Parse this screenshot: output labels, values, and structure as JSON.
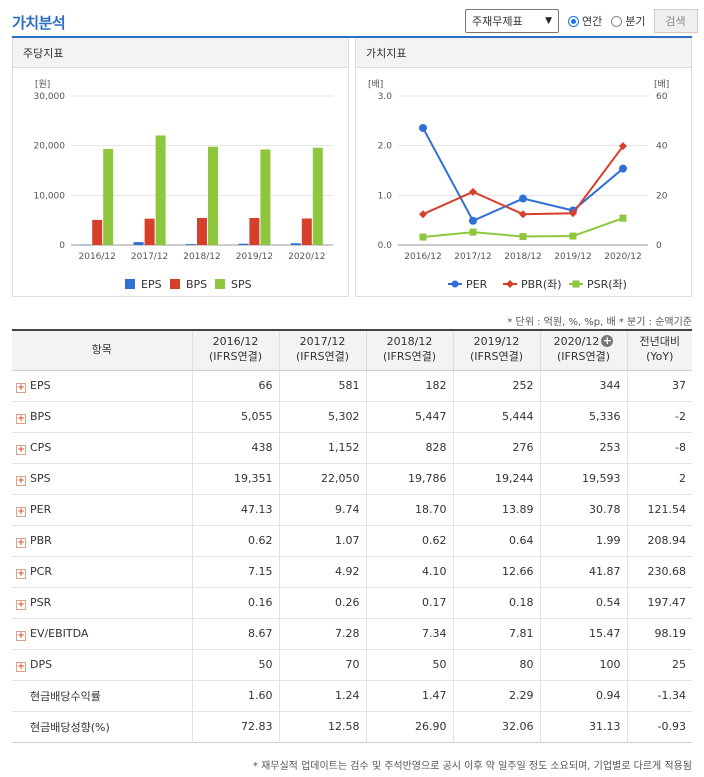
{
  "header": {
    "title": "가치분석",
    "select_value": "주재무제표",
    "radio_annual": "연간",
    "radio_quarter": "분기",
    "search_label": "검색"
  },
  "left_panel": {
    "title": "주당지표"
  },
  "right_panel": {
    "title": "가치지표"
  },
  "chart_data": [
    {
      "type": "bar",
      "title": "주당지표",
      "ylabel": "[원]",
      "categories": [
        "2016/12",
        "2017/12",
        "2018/12",
        "2019/12",
        "2020/12"
      ],
      "ylim": [
        0,
        30000
      ],
      "yticks": [
        "0",
        "10,000",
        "20,000",
        "30,000"
      ],
      "ytick_values": [
        0,
        10000,
        20000,
        30000
      ],
      "series": [
        {
          "name": "EPS",
          "color": "#2f6fd6",
          "values": [
            66,
            581,
            182,
            252,
            344
          ]
        },
        {
          "name": "BPS",
          "color": "#d6402a",
          "values": [
            5055,
            5302,
            5447,
            5444,
            5336
          ]
        },
        {
          "name": "SPS",
          "color": "#8ec73e",
          "values": [
            19351,
            22050,
            19786,
            19244,
            19593
          ]
        }
      ]
    },
    {
      "type": "line",
      "title": "가치지표",
      "ylabel_left": "[배]",
      "ylabel_right": "[배]",
      "categories": [
        "2016/12",
        "2017/12",
        "2018/12",
        "2019/12",
        "2020/12"
      ],
      "ylim_left": [
        0,
        3
      ],
      "ylim_right": [
        0,
        60
      ],
      "yticks_left": [
        "0.0",
        "1.0",
        "2.0",
        "3.0"
      ],
      "yticks_right": [
        "0",
        "20",
        "40",
        "60"
      ],
      "series": [
        {
          "name": "PER",
          "axis": "right",
          "color": "#2f6fd6",
          "marker": "circle",
          "values": [
            47.13,
            9.74,
            18.7,
            13.89,
            30.78
          ]
        },
        {
          "name": "PBR(좌)",
          "axis": "left",
          "color": "#d6402a",
          "marker": "diamond",
          "values": [
            0.62,
            1.07,
            0.62,
            0.64,
            1.99
          ]
        },
        {
          "name": "PSR(좌)",
          "axis": "left",
          "color": "#8ec73e",
          "marker": "square",
          "values": [
            0.16,
            0.26,
            0.17,
            0.18,
            0.54
          ]
        }
      ]
    }
  ],
  "unit_note": "* 단위 : 억원, %, %p, 배    * 분기 : 순액기준",
  "table": {
    "header_item": "항목",
    "columns": [
      {
        "period": "2016/12",
        "basis": "(IFRS연결)"
      },
      {
        "period": "2017/12",
        "basis": "(IFRS연결)"
      },
      {
        "period": "2018/12",
        "basis": "(IFRS연결)"
      },
      {
        "period": "2019/12",
        "basis": "(IFRS연결)"
      },
      {
        "period": "2020/12",
        "basis": "(IFRS연결)"
      }
    ],
    "yoy_line1": "전년대비",
    "yoy_line2": "(YoY)",
    "rows": [
      {
        "label": "EPS",
        "expandable": true,
        "values": [
          "66",
          "581",
          "182",
          "252",
          "344"
        ],
        "yoy": "37",
        "neg": false
      },
      {
        "label": "BPS",
        "expandable": true,
        "values": [
          "5,055",
          "5,302",
          "5,447",
          "5,444",
          "5,336"
        ],
        "yoy": "-2",
        "neg": true
      },
      {
        "label": "CPS",
        "expandable": true,
        "values": [
          "438",
          "1,152",
          "828",
          "276",
          "253"
        ],
        "yoy": "-8",
        "neg": true
      },
      {
        "label": "SPS",
        "expandable": true,
        "values": [
          "19,351",
          "22,050",
          "19,786",
          "19,244",
          "19,593"
        ],
        "yoy": "2",
        "neg": false
      },
      {
        "label": "PER",
        "expandable": true,
        "values": [
          "47.13",
          "9.74",
          "18.70",
          "13.89",
          "30.78"
        ],
        "yoy": "121.54",
        "neg": false
      },
      {
        "label": "PBR",
        "expandable": true,
        "values": [
          "0.62",
          "1.07",
          "0.62",
          "0.64",
          "1.99"
        ],
        "yoy": "208.94",
        "neg": false
      },
      {
        "label": "PCR",
        "expandable": true,
        "values": [
          "7.15",
          "4.92",
          "4.10",
          "12.66",
          "41.87"
        ],
        "yoy": "230.68",
        "neg": false
      },
      {
        "label": "PSR",
        "expandable": true,
        "values": [
          "0.16",
          "0.26",
          "0.17",
          "0.18",
          "0.54"
        ],
        "yoy": "197.47",
        "neg": false
      },
      {
        "label": "EV/EBITDA",
        "expandable": true,
        "values": [
          "8.67",
          "7.28",
          "7.34",
          "7.81",
          "15.47"
        ],
        "yoy": "98.19",
        "neg": false
      },
      {
        "label": "DPS",
        "expandable": true,
        "values": [
          "50",
          "70",
          "50",
          "80",
          "100"
        ],
        "yoy": "25",
        "neg": false
      },
      {
        "label": "현금배당수익률",
        "expandable": false,
        "values": [
          "1.60",
          "1.24",
          "1.47",
          "2.29",
          "0.94"
        ],
        "yoy": "-1.34",
        "neg": true
      },
      {
        "label": "현금배당성향(%)",
        "expandable": false,
        "values": [
          "72.83",
          "12.58",
          "26.90",
          "32.06",
          "31.13"
        ],
        "yoy": "-0.93",
        "neg": true
      }
    ]
  },
  "footer_note": "* 재무실적 업데이트는 검수 및 주석반영으로 공시 이후 약 일주일 정도 소요되며, 기업별로 다르게 적용됨"
}
